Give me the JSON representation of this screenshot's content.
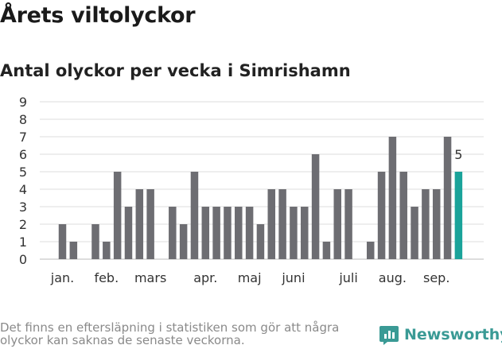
{
  "title": "Årets viltolyckor",
  "subtitle": "Antal olyckor per vecka i Simrishamn",
  "footnote": "Det finns en eftersläpning i statistiken som gör att några olyckor kan saknas de senaste veckorna.",
  "brand": "Newsworthy",
  "colors": {
    "bar": "#6d6d72",
    "highlight": "#1aa39a",
    "grid": "#dddddd",
    "brand": "#3a9a95"
  },
  "chart_data": {
    "type": "bar",
    "title": "Årets viltolyckor",
    "subtitle": "Antal olyckor per vecka i Simrishamn",
    "xlabel": "",
    "ylabel": "",
    "ylim": [
      0,
      9
    ],
    "yticks": [
      0,
      1,
      2,
      3,
      4,
      5,
      6,
      7,
      8,
      9
    ],
    "grid": true,
    "x_tick_labels": [
      {
        "label": "jan.",
        "week": 1
      },
      {
        "label": "feb.",
        "week": 5
      },
      {
        "label": "mars",
        "week": 9
      },
      {
        "label": "apr.",
        "week": 14
      },
      {
        "label": "maj",
        "week": 18
      },
      {
        "label": "juni",
        "week": 22
      },
      {
        "label": "juli",
        "week": 27
      },
      {
        "label": "aug.",
        "week": 31
      },
      {
        "label": "sep.",
        "week": 35
      }
    ],
    "weeks": [
      1,
      2,
      3,
      4,
      5,
      6,
      7,
      8,
      9,
      10,
      11,
      12,
      13,
      14,
      15,
      16,
      17,
      18,
      19,
      20,
      21,
      22,
      23,
      24,
      25,
      26,
      27,
      28,
      29,
      30,
      31,
      32,
      33,
      34,
      35,
      36,
      37
    ],
    "values": [
      2,
      1,
      0,
      2,
      1,
      5,
      3,
      4,
      4,
      0,
      3,
      2,
      5,
      3,
      3,
      3,
      3,
      3,
      2,
      4,
      4,
      3,
      3,
      6,
      1,
      4,
      4,
      0,
      1,
      5,
      7,
      5,
      3,
      4,
      4,
      7,
      5
    ],
    "highlight_last": true,
    "data_labels": [
      {
        "week": 37,
        "label": "5"
      }
    ]
  }
}
